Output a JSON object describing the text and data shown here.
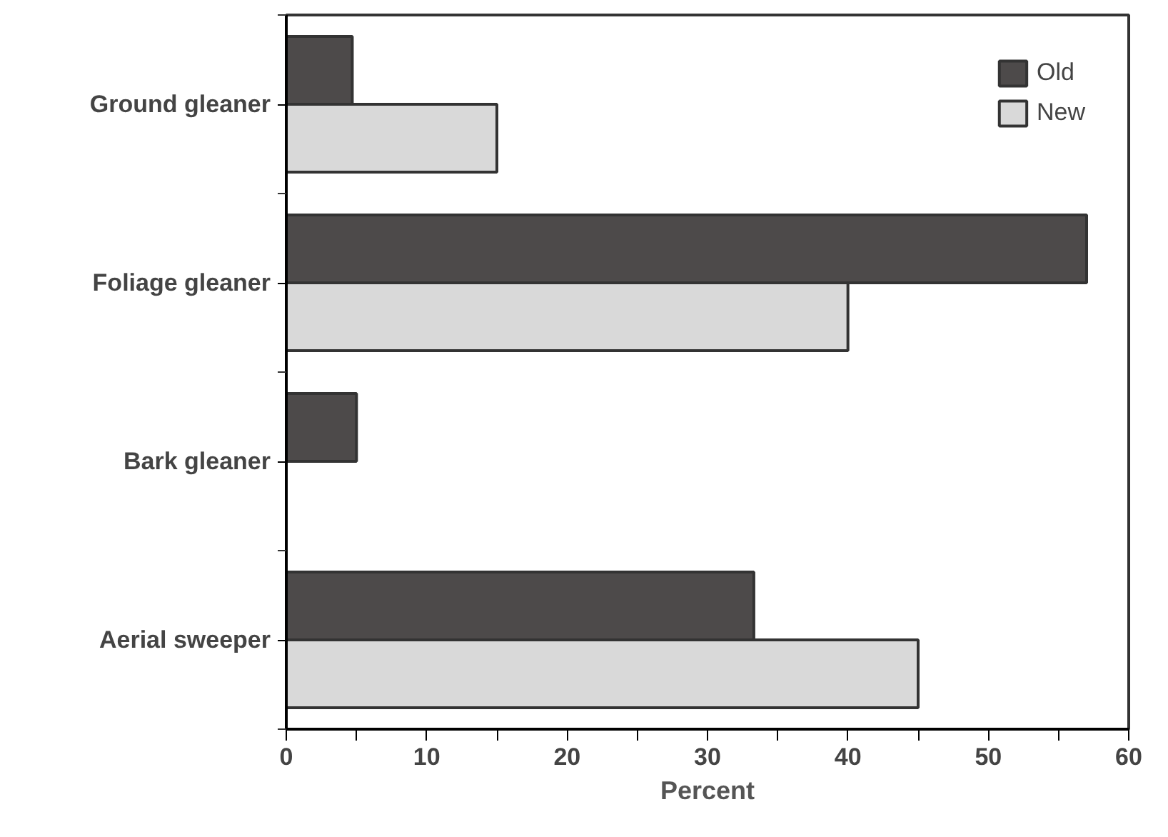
{
  "chart_data": {
    "type": "bar",
    "orientation": "horizontal",
    "xlabel": "Percent",
    "categories": [
      "Ground gleaner",
      "Foliage gleaner",
      "Bark gleaner",
      "Aerial sweeper"
    ],
    "series": [
      {
        "name": "Old",
        "color": "#4d4a4a",
        "values": [
          4.7,
          57,
          5,
          33.3
        ]
      },
      {
        "name": "New",
        "color": "#d9d9d9",
        "values": [
          15,
          40,
          null,
          45
        ]
      }
    ],
    "xlim": [
      0,
      60
    ],
    "xticks": [
      0,
      {
        "value": 5,
        "label": null
      },
      10,
      {
        "value": 15,
        "label": null
      },
      20,
      {
        "value": 25,
        "label": null
      },
      30,
      {
        "value": 35,
        "label": null
      },
      40,
      {
        "value": 45,
        "label": null
      },
      50,
      {
        "value": 55,
        "label": null
      },
      60
    ],
    "grid": false,
    "legend": "top right"
  }
}
